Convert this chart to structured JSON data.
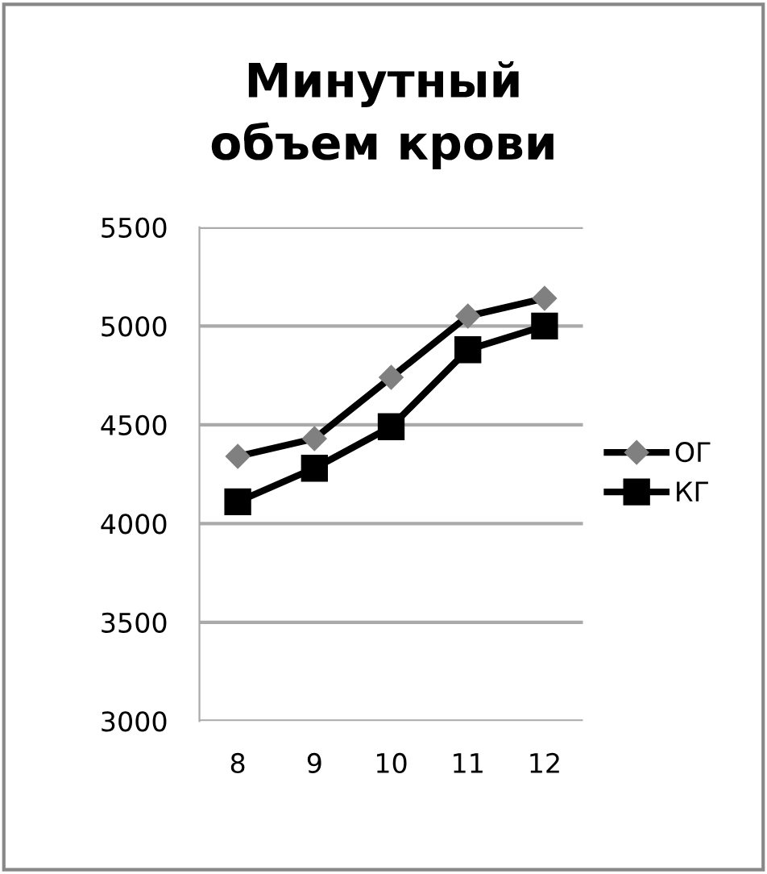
{
  "chart_data": {
    "type": "line",
    "title": "Минутный\nобъем крови",
    "categories": [
      "8",
      "9",
      "10",
      "11",
      "12"
    ],
    "series": [
      {
        "name": "ОГ",
        "color": "#000000",
        "colors": [
          "#808080",
          "#808080",
          "#808080",
          "#808080",
          "#808080"
        ],
        "marker": "diamond",
        "values": [
          4340,
          4430,
          4740,
          5050,
          5140
        ]
      },
      {
        "name": "КГ",
        "color": "#000000",
        "marker": "square",
        "values": [
          4110,
          4280,
          4490,
          4880,
          5000
        ]
      }
    ],
    "ylim": [
      3000,
      5500
    ],
    "yticks": [
      3000,
      3500,
      4000,
      4500,
      5000,
      5500
    ],
    "grid": "y",
    "legend": "right",
    "line_style": "solid"
  }
}
